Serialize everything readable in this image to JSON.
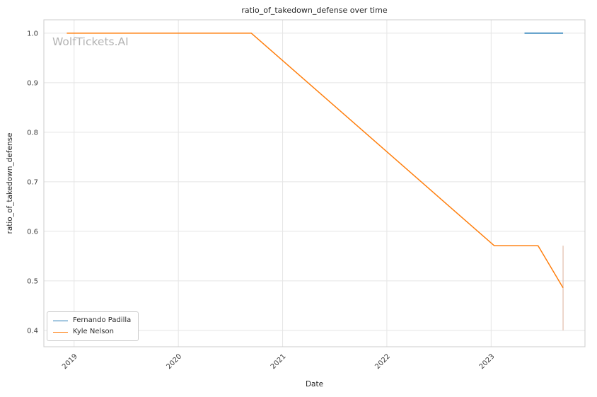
{
  "chart_data": {
    "type": "line",
    "title": "ratio_of_takedown_defense over time",
    "xlabel": "Date",
    "ylabel": "ratio_of_takedown_defense",
    "watermark": "WolfTickets.AI",
    "x_ticks": [
      2019,
      2020,
      2021,
      2022,
      2023
    ],
    "y_ticks": [
      0.4,
      0.5,
      0.6,
      0.7,
      0.8,
      0.9,
      1.0
    ],
    "xlim": [
      2018.71,
      2023.9
    ],
    "ylim": [
      0.367,
      1.027
    ],
    "grid": true,
    "legend_position": "lower left",
    "series": [
      {
        "name": "Fernando Padilla",
        "color": "#1f77b4",
        "points": [
          [
            2023.32,
            1.0
          ],
          [
            2023.69,
            1.0
          ]
        ]
      },
      {
        "name": "Kyle Nelson",
        "color": "#ff7f0e",
        "points": [
          [
            2018.93,
            1.0
          ],
          [
            2020.7,
            1.0
          ],
          [
            2023.03,
            0.571
          ],
          [
            2023.45,
            0.571
          ],
          [
            2023.69,
            0.486
          ]
        ]
      }
    ],
    "error_bar": {
      "x": 2023.69,
      "y1": 0.4,
      "y2": 0.571,
      "color": "#e2bca9"
    },
    "colors": {
      "grid": "#e5e5e5",
      "spine": "#cccccc",
      "tick_label": "#3d3d3d",
      "title": "#262626",
      "watermark": "#b3b3b3",
      "background": "#ffffff"
    }
  }
}
